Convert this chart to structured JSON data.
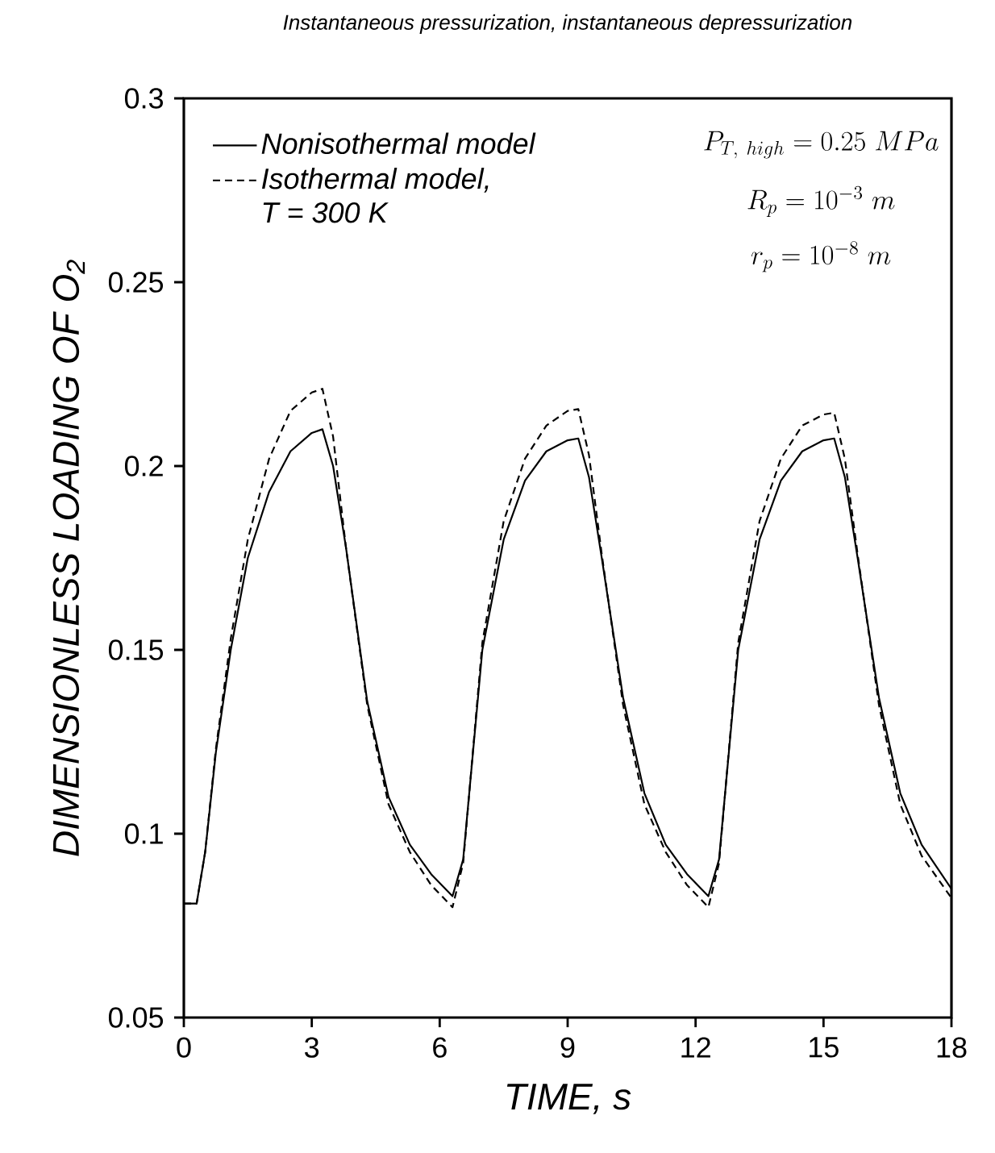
{
  "chart_data": {
    "type": "line",
    "title": "Instantaneous pressurization, instantaneous depressurization",
    "xlabel": "TIME, s",
    "ylabel": "DIMENSIONLESS LOADING OF O$_{2}$",
    "x": [
      0,
      0.3,
      0.5,
      0.75,
      1.1,
      1.5,
      2.0,
      2.5,
      3.0,
      3.25,
      3.5,
      3.8,
      4.3,
      4.8,
      5.3,
      5.8,
      6.3,
      6.55,
      7.0,
      7.5,
      8.0,
      8.5,
      9.0,
      9.25,
      9.5,
      9.8,
      10.3,
      10.8,
      11.3,
      11.8,
      12.3,
      12.55,
      13,
      13.5,
      14,
      14.5,
      15,
      15.25,
      15.5,
      15.8,
      16.3,
      16.8,
      17.3,
      18
    ],
    "series": [
      {
        "name": "Nonisothermal model",
        "color": "#000000",
        "line_style": "solid",
        "values": [
          0.081,
          0.081,
          0.095,
          0.122,
          0.15,
          0.175,
          0.193,
          0.204,
          0.209,
          0.21,
          0.2,
          0.178,
          0.136,
          0.11,
          0.097,
          0.089,
          0.083,
          0.093,
          0.15,
          0.18,
          0.196,
          0.204,
          0.207,
          0.2075,
          0.197,
          0.175,
          0.137,
          0.111,
          0.097,
          0.089,
          0.083,
          0.093,
          0.15,
          0.18,
          0.196,
          0.204,
          0.207,
          0.2075,
          0.197,
          0.175,
          0.137,
          0.111,
          0.097,
          0.085
        ]
      },
      {
        "name": "Isothermal model, T = 300 K",
        "color": "#000000",
        "line_style": "dashed",
        "values": [
          0.081,
          0.081,
          0.095,
          0.123,
          0.153,
          0.18,
          0.202,
          0.215,
          0.22,
          0.221,
          0.208,
          0.178,
          0.135,
          0.108,
          0.095,
          0.086,
          0.08,
          0.092,
          0.152,
          0.185,
          0.202,
          0.211,
          0.215,
          0.2155,
          0.203,
          0.176,
          0.135,
          0.108,
          0.095,
          0.086,
          0.08,
          0.092,
          0.152,
          0.185,
          0.202,
          0.211,
          0.214,
          0.2145,
          0.202,
          0.176,
          0.135,
          0.108,
          0.094,
          0.0825
        ]
      }
    ],
    "xlim": [
      0,
      18
    ],
    "ylim": [
      0.05,
      0.3
    ],
    "xticks": [
      0,
      3,
      6,
      9,
      12,
      15,
      18
    ],
    "yticks": [
      0.05,
      0.1,
      0.15,
      0.2,
      0.25,
      0.3
    ],
    "legend": "top left",
    "grid": false,
    "annotations": [
      "P_{T,\\ high} = 0.25\\ MPa",
      "R_{p} = 10^{-3}\\ m",
      "r_{p} = 10^{-8}\\ m"
    ]
  }
}
